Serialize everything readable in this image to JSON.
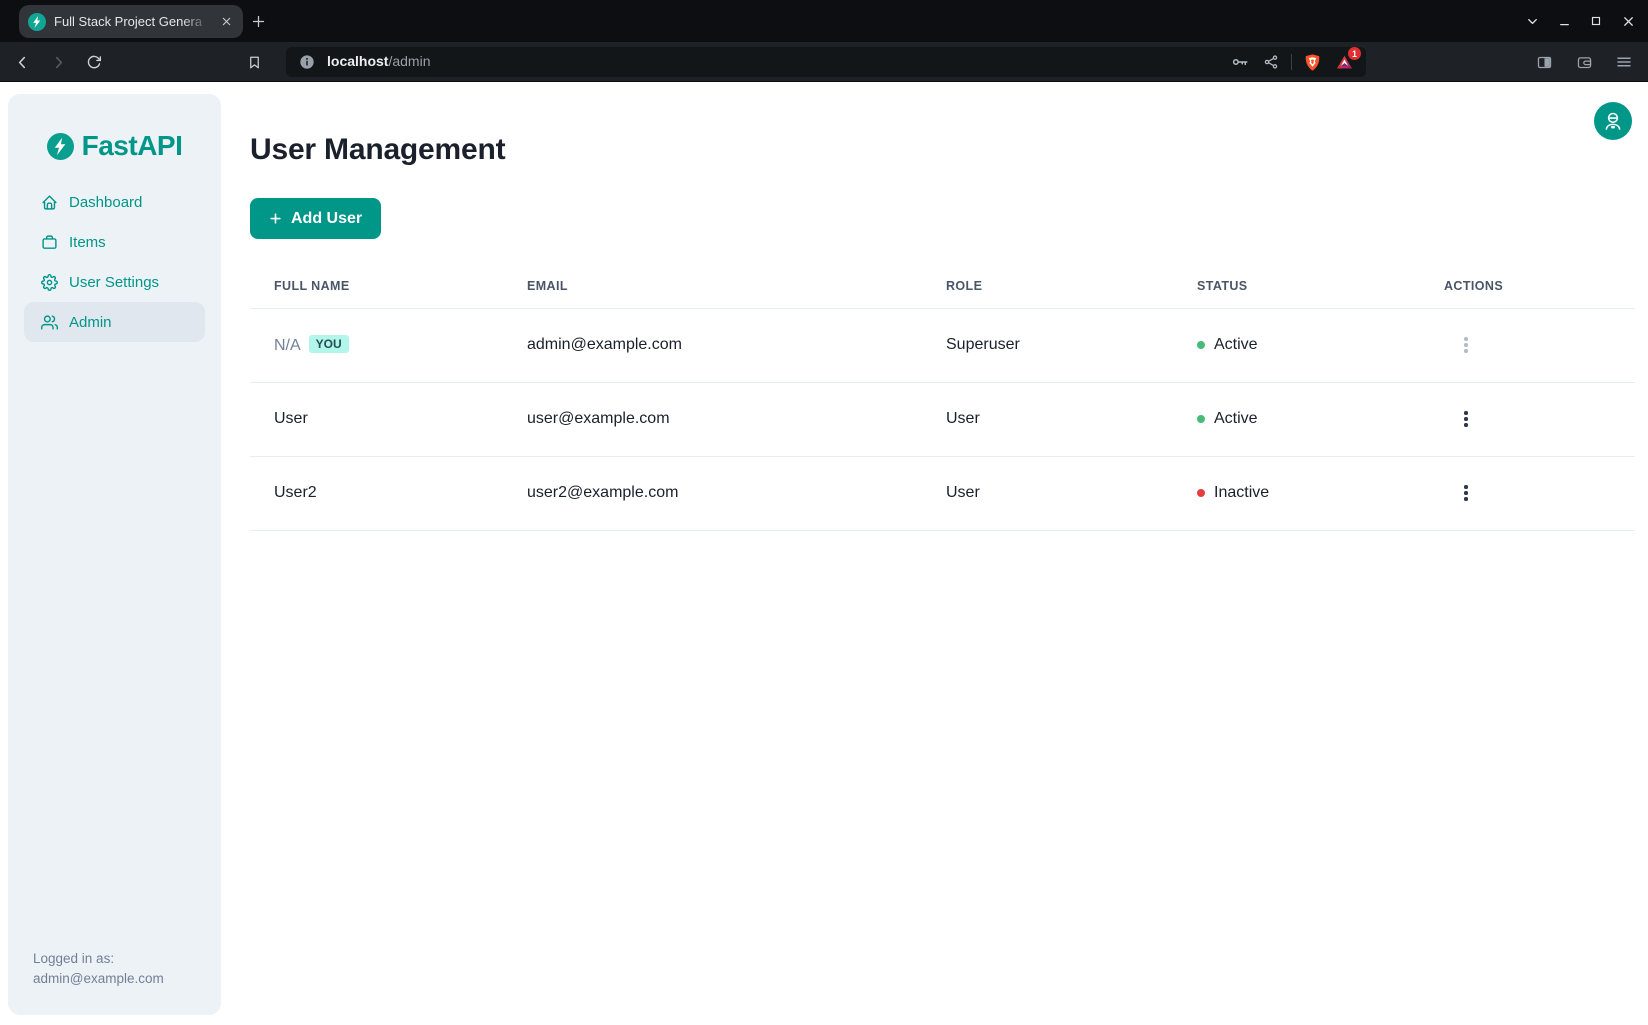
{
  "browser": {
    "tab_title": "Full Stack Project Genera",
    "url": {
      "host": "localhost",
      "path": "/admin"
    },
    "rewards_badge": "1",
    "icons": [
      "brave-favicon",
      "tab-close-icon",
      "new-tab-icon",
      "tab-search-icon",
      "minimize-icon",
      "maximize-icon",
      "close-icon",
      "back-icon",
      "forward-icon",
      "reload-icon",
      "bookmark-icon",
      "site-info-icon",
      "key-icon",
      "share-icon",
      "brave-shield-icon",
      "brave-rewards-icon",
      "sidebar-toggle-icon",
      "wallet-icon",
      "menu-icon"
    ]
  },
  "sidebar": {
    "logo_text": "FastAPI",
    "items": [
      {
        "label": "Dashboard",
        "icon": "home-icon",
        "active": false
      },
      {
        "label": "Items",
        "icon": "briefcase-icon",
        "active": false
      },
      {
        "label": "User Settings",
        "icon": "gear-icon",
        "active": false
      },
      {
        "label": "Admin",
        "icon": "users-icon",
        "active": true
      }
    ],
    "logged_in_label": "Logged in as:",
    "logged_in_email": "admin@example.com"
  },
  "main": {
    "title": "User Management",
    "add_user_label": "Add User",
    "table": {
      "headers": [
        "FULL NAME",
        "EMAIL",
        "ROLE",
        "STATUS",
        "ACTIONS"
      ],
      "rows": [
        {
          "full_name": "N/A",
          "name_muted": true,
          "you_badge": "YOU",
          "email": "admin@example.com",
          "role": "Superuser",
          "status": "Active",
          "status_color": "#48bb78",
          "actions_disabled": true
        },
        {
          "full_name": "User",
          "name_muted": false,
          "you_badge": "",
          "email": "user@example.com",
          "role": "User",
          "status": "Active",
          "status_color": "#48bb78",
          "actions_disabled": false
        },
        {
          "full_name": "User2",
          "name_muted": false,
          "you_badge": "",
          "email": "user2@example.com",
          "role": "User",
          "status": "Inactive",
          "status_color": "#e53e3e",
          "actions_disabled": false
        }
      ]
    }
  },
  "colors": {
    "accent_teal": "#009688",
    "badge_bg": "#b2f5ea",
    "badge_text": "#234e52",
    "active_green": "#48bb78",
    "inactive_red": "#e53e3e",
    "brave_orange": "#fb542b",
    "rewards_purple": "#662d91",
    "sidebar_bg": "#edf2f7"
  }
}
